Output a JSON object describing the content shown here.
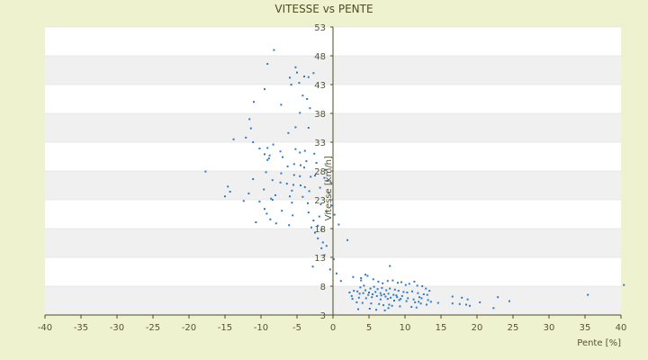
{
  "chart_data": {
    "type": "scatter",
    "title": "VITESSE vs PENTE",
    "xlabel": "Pente [%]",
    "ylabel": "Vitesse [km/h]",
    "xlim": [
      -40,
      40
    ],
    "ylim": [
      3,
      53
    ],
    "x_ticks": [
      -40,
      -35,
      -30,
      -25,
      -20,
      -15,
      -10,
      -5,
      0,
      5,
      10,
      15,
      20,
      25,
      30,
      35,
      40
    ],
    "y_ticks": [
      3,
      8,
      13,
      18,
      23,
      28,
      33,
      38,
      43,
      48,
      53
    ],
    "grid": "horizontal bands",
    "legend": "none",
    "colors": {
      "point": "#2e7bc4",
      "band": "#f0f0f0",
      "plot_bg": "#ffffff",
      "page_bg": "#eef2cf",
      "axis": "#4d4d1f"
    },
    "series": [
      {
        "x": [
          -8.2,
          -9.1,
          -5.2,
          -5.0,
          -4.0,
          -3.4,
          -2.7,
          -6.0,
          -4.7,
          -5.8,
          -9.5,
          -4.2,
          -3.6,
          -11.0,
          -7.2,
          -3.2,
          -4.6,
          -11.6,
          -11.4,
          -3.4,
          -5.2,
          -6.2,
          -8.3,
          -12.1,
          -11.1,
          -13.8,
          -9.1,
          -10.2,
          -5.2,
          -7.3,
          -4.6,
          -3.9,
          -9.5,
          -8.8,
          -7.0,
          -2.6,
          -8.9,
          -9.1,
          -3.7,
          -2.3,
          -5.4,
          -4.5,
          -6.3,
          -4.0,
          -1.0,
          -9.3,
          -7.2,
          -5.4,
          -4.6,
          -3.1,
          -2.5,
          -1.2,
          -0.8,
          -0.3,
          -17.7,
          -11.1,
          -8.4,
          -7.3,
          -6.4,
          -5.5,
          -4.5,
          -3.9,
          -1.8,
          -14.6,
          -9.6,
          -5.7,
          -3.3,
          -0.6,
          -14.3,
          -11.7,
          -8.0,
          -6.0,
          -4.2,
          -8.6,
          -8.4,
          -12.4,
          -10.2,
          -5.7,
          -3.5,
          -1.7,
          -0.2,
          -15.0,
          -9.5,
          -7.1,
          -3.4,
          -0.9,
          0.2,
          -9.2,
          -5.6,
          -1.9,
          -8.7,
          -2.7,
          -10.7,
          -7.9,
          -6.1,
          -2.1,
          0.8,
          -3.0,
          -1.6,
          -2.5,
          -2.1,
          -1.4,
          2.0,
          -0.9,
          -1.6,
          -1.2,
          0.1,
          -2.8,
          -0.4,
          0.5,
          2.8,
          3.9,
          4.8,
          5.6,
          6.3,
          6.9,
          7.6,
          8.3,
          9.0,
          9.5,
          10.1,
          10.6,
          11.3,
          11.7,
          12.4,
          12.9,
          13.4,
          13.6,
          14.6,
          16.6,
          17.6,
          18.5,
          19.0,
          20.4,
          22.9,
          24.5,
          35.4,
          40.4,
          3.8,
          4.3,
          5.2,
          5.7,
          6.2,
          6.8,
          7.4,
          7.9,
          8.6,
          9.1,
          9.8,
          10.3,
          11.0,
          11.8,
          12.6,
          13.1,
          16.6,
          17.9,
          18.7,
          3.4,
          4.5,
          5.0,
          5.9,
          6.6,
          7.1,
          7.7,
          8.4,
          8.8,
          9.6,
          12.0,
          12.3,
          13.2,
          2.3,
          2.9,
          3.7,
          4.2,
          4.9,
          5.5,
          6.1,
          6.7,
          7.3,
          8.0,
          8.9,
          9.4,
          10.4,
          11.2,
          2.6,
          3.6,
          4.6,
          5.4,
          6.6,
          7.6,
          8.5,
          9.2,
          10.2,
          11.4,
          11.9,
          12.2,
          13.0,
          1.1,
          2.7,
          3.3,
          4.1,
          5.3,
          6.4,
          7.0,
          7.8,
          8.2,
          9.3,
          10.9,
          11.6,
          22.3,
          3.5,
          5.1,
          6.0,
          7.2,
          7.7,
          4.5,
          3.9,
          7.9
        ],
        "y": [
          49.0,
          46.6,
          46.0,
          45.1,
          44.4,
          44.3,
          45.0,
          44.2,
          43.3,
          43.0,
          42.2,
          41.1,
          40.5,
          40.0,
          39.5,
          38.9,
          38.1,
          37.0,
          35.4,
          35.5,
          35.6,
          34.6,
          32.6,
          33.8,
          33.0,
          33.5,
          32.0,
          31.9,
          31.8,
          31.4,
          31.2,
          31.5,
          30.9,
          30.7,
          30.4,
          31.0,
          30.2,
          29.9,
          29.7,
          29.4,
          29.2,
          29.0,
          28.8,
          28.6,
          28.2,
          27.8,
          27.6,
          27.3,
          27.1,
          27.0,
          27.2,
          26.8,
          26.3,
          26.0,
          27.9,
          26.6,
          26.4,
          26.0,
          25.8,
          25.6,
          25.5,
          25.2,
          25.1,
          25.3,
          24.8,
          24.6,
          24.5,
          24.2,
          24.4,
          24.1,
          23.8,
          23.6,
          23.5,
          23.2,
          23.0,
          22.8,
          22.7,
          22.5,
          22.4,
          22.2,
          22.0,
          23.6,
          21.4,
          21.1,
          20.8,
          20.9,
          20.4,
          20.6,
          20.3,
          20.1,
          19.6,
          19.4,
          19.1,
          18.9,
          18.6,
          18.5,
          18.7,
          18.2,
          17.8,
          17.3,
          16.3,
          15.6,
          16.0,
          15.0,
          14.6,
          13.4,
          12.7,
          11.4,
          10.9,
          10.2,
          9.6,
          9.4,
          9.8,
          9.2,
          8.8,
          8.5,
          8.9,
          9.0,
          8.6,
          8.7,
          8.2,
          8.4,
          8.8,
          8.1,
          8.0,
          7.6,
          7.2,
          5.3,
          5.1,
          5.0,
          4.9,
          4.8,
          4.6,
          5.2,
          6.1,
          5.4,
          6.5,
          8.2,
          7.8,
          8.1,
          7.6,
          7.9,
          7.5,
          7.7,
          7.3,
          7.6,
          7.4,
          7.2,
          7.0,
          6.9,
          7.1,
          6.8,
          6.6,
          6.5,
          6.2,
          6.0,
          5.7,
          7.1,
          7.3,
          6.9,
          7.0,
          6.8,
          6.6,
          6.7,
          6.5,
          6.4,
          6.3,
          6.1,
          5.9,
          5.6,
          6.9,
          7.2,
          6.7,
          6.8,
          6.5,
          6.6,
          6.3,
          6.4,
          6.2,
          6.0,
          6.1,
          5.8,
          5.9,
          5.7,
          6.3,
          6.0,
          5.9,
          6.1,
          5.7,
          5.8,
          5.5,
          5.6,
          5.4,
          5.2,
          5.3,
          5.0,
          4.8,
          8.9,
          5.8,
          5.2,
          5.1,
          5.0,
          4.9,
          4.7,
          4.8,
          4.6,
          4.5,
          4.4,
          4.3,
          4.2,
          4.0,
          4.1,
          3.9,
          3.8,
          4.2,
          10.0,
          9.0,
          11.5
        ]
      }
    ]
  }
}
